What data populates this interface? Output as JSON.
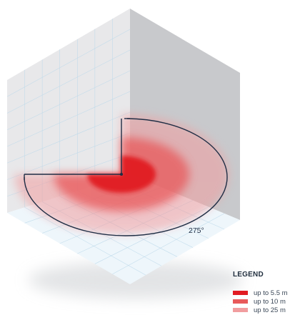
{
  "diagram": {
    "angle_label": "275°",
    "colors": {
      "wall_left": "#e8e8ea",
      "wall_right": "#c8c9cc",
      "floor": "#eef6fb",
      "grid": "#bcd9ea",
      "arc": "#1f2d44",
      "zone_inner": "#e11b22",
      "zone_middle": "#e8595a",
      "zone_outer": "#f19d9f"
    }
  },
  "legend": {
    "title": "LEGEND",
    "items": [
      {
        "label": "up to 5.5 m",
        "color": "#e11b22"
      },
      {
        "label": "up to 10 m",
        "color": "#e8595a"
      },
      {
        "label": "up to 25 m",
        "color": "#f19d9f"
      }
    ]
  }
}
